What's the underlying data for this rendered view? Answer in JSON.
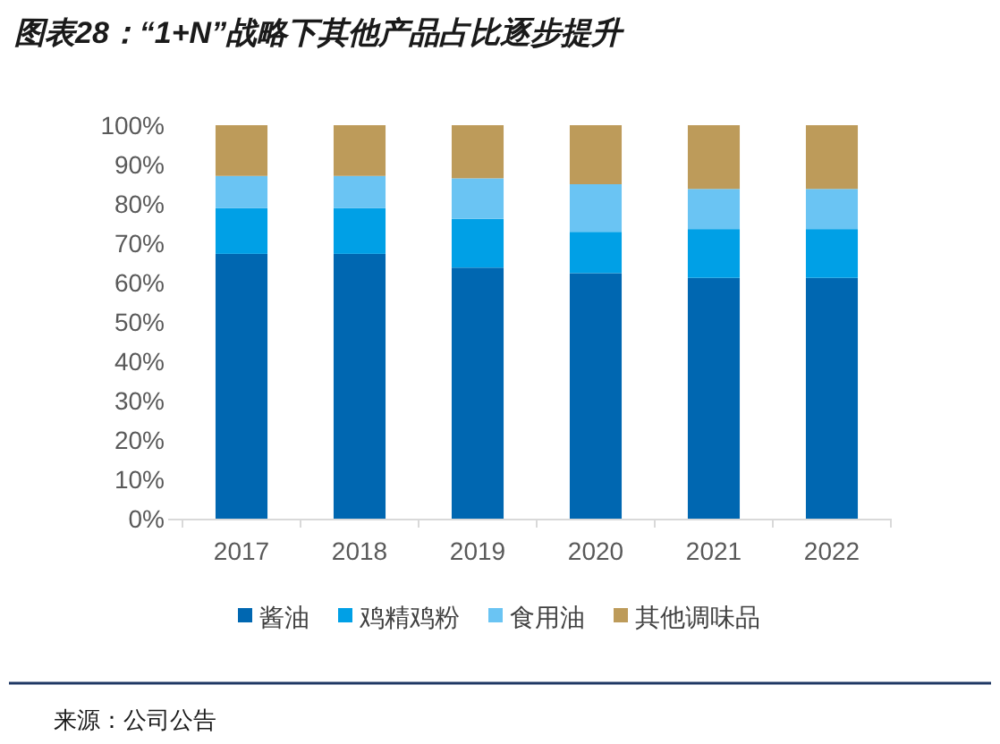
{
  "chart_data": {
    "type": "bar",
    "stacked": true,
    "title": "图表28：“1+N”战略下其他产品占比逐步提升",
    "categories": [
      "2017",
      "2018",
      "2019",
      "2020",
      "2021",
      "2022"
    ],
    "series": [
      {
        "name": "酱油",
        "color": "#0067b1",
        "values": [
          67.3,
          67.3,
          63.8,
          62.4,
          61.2,
          61.2
        ]
      },
      {
        "name": "鸡精鸡粉",
        "color": "#00a0e6",
        "values": [
          11.6,
          11.6,
          12.4,
          10.5,
          12.4,
          12.4
        ]
      },
      {
        "name": "食用油",
        "color": "#6ac4f3",
        "values": [
          8.2,
          8.2,
          10.3,
          12.1,
          10.2,
          10.2
        ]
      },
      {
        "name": "其他调味品",
        "color": "#bd9b5a",
        "values": [
          12.9,
          12.9,
          13.5,
          15.0,
          16.2,
          16.2
        ]
      }
    ],
    "ylim": [
      0,
      100
    ],
    "yticks": [
      {
        "value": 0,
        "label": "0%"
      },
      {
        "value": 10,
        "label": "10%"
      },
      {
        "value": 20,
        "label": "20%"
      },
      {
        "value": 30,
        "label": "30%"
      },
      {
        "value": 40,
        "label": "40%"
      },
      {
        "value": 50,
        "label": "50%"
      },
      {
        "value": 60,
        "label": "60%"
      },
      {
        "value": 70,
        "label": "70%"
      },
      {
        "value": 80,
        "label": "80%"
      },
      {
        "value": 90,
        "label": "90%"
      },
      {
        "value": 100,
        "label": "100%"
      }
    ],
    "legend": "bottom",
    "grid": false,
    "annotations": [
      "来源：公司公告"
    ]
  }
}
